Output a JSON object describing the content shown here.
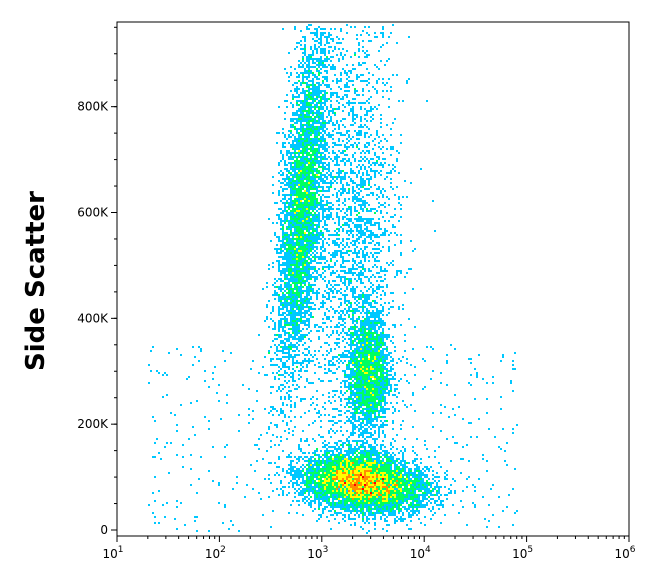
{
  "chart_data": {
    "type": "scatter",
    "ylabel": "Side Scatter",
    "xlabel": "",
    "x_scale": "log",
    "xlim": [
      10,
      1000000
    ],
    "ylim": [
      0,
      960000
    ],
    "x_tick_labels": [
      {
        "value": 10,
        "base": "10",
        "exp": "1"
      },
      {
        "value": 100,
        "base": "10",
        "exp": "2"
      },
      {
        "value": 1000,
        "base": "10",
        "exp": "3"
      },
      {
        "value": 10000,
        "base": "10",
        "exp": "4"
      },
      {
        "value": 100000,
        "base": "10",
        "exp": "5"
      },
      {
        "value": 1000000,
        "base": "10",
        "exp": "6"
      }
    ],
    "y_tick_labels": [
      {
        "value": 0,
        "label": "0"
      },
      {
        "value": 200000,
        "label": "200K"
      },
      {
        "value": 400000,
        "label": "400K"
      },
      {
        "value": 600000,
        "label": "600K"
      },
      {
        "value": 800000,
        "label": "800K"
      }
    ],
    "colormap": [
      "#0000ff",
      "#00c8ff",
      "#00ff60",
      "#ffff00",
      "#ff8c00",
      "#ff0000"
    ],
    "populations": [
      {
        "center_log10_x": 2.8,
        "center_y": 610000,
        "spread_log10_x": 0.1,
        "spread_y": 160000,
        "density": "high"
      },
      {
        "center_log10_x": 3.3,
        "center_y": 100000,
        "spread_log10_x": 0.25,
        "spread_y": 25000,
        "density": "very high"
      },
      {
        "center_log10_x": 3.6,
        "center_y": 75000,
        "spread_log10_x": 0.25,
        "spread_y": 22000,
        "density": "medium"
      },
      {
        "center_log10_x": 3.45,
        "center_y": 300000,
        "spread_log10_x": 0.1,
        "spread_y": 55000,
        "density": "medium"
      },
      {
        "center_log10_x": 3.3,
        "center_y": 550000,
        "spread_log10_x": 0.22,
        "spread_y": 220000,
        "density": "low"
      }
    ]
  }
}
